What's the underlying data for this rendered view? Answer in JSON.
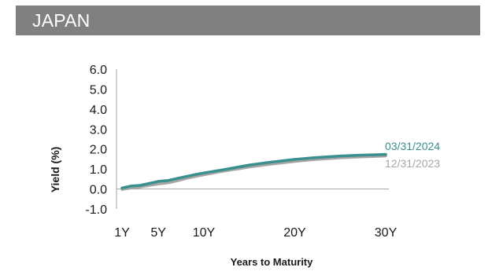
{
  "header": {
    "title": "JAPAN"
  },
  "colors": {
    "header_bg": "#808080",
    "series_1": "#3a8f8f",
    "series_2": "#a6a6a6",
    "axis": "#a6a6a6"
  },
  "chart_data": {
    "type": "line",
    "title": "",
    "xlabel": "Years to Maturity",
    "ylabel": "Yield (%)",
    "ylim": [
      -1.0,
      6.0
    ],
    "yticks": [
      "6.0",
      "5.0",
      "4.0",
      "3.0",
      "2.0",
      "1.0",
      "0.0",
      "-1.0"
    ],
    "xticks": [
      "1Y",
      "5Y",
      "10Y",
      "20Y",
      "30Y"
    ],
    "xtick_values": [
      1,
      5,
      10,
      20,
      30
    ],
    "xlim": [
      1,
      30
    ],
    "grid": false,
    "legend": "inline-right",
    "series": [
      {
        "name": "03/31/2024",
        "color": "#3a8f8f",
        "x": [
          1,
          2,
          3,
          4,
          5,
          6,
          7,
          8,
          9,
          10,
          12,
          15,
          17,
          20,
          22,
          25,
          27,
          30
        ],
        "values": [
          0.05,
          0.15,
          0.18,
          0.28,
          0.38,
          0.42,
          0.52,
          0.62,
          0.72,
          0.8,
          0.95,
          1.2,
          1.32,
          1.48,
          1.56,
          1.65,
          1.69,
          1.73
        ]
      },
      {
        "name": "12/31/2023",
        "color": "#a6a6a6",
        "x": [
          1,
          2,
          3,
          4,
          5,
          6,
          7,
          8,
          9,
          10,
          12,
          15,
          17,
          20,
          22,
          25,
          27,
          30
        ],
        "values": [
          -0.02,
          0.05,
          0.1,
          0.18,
          0.25,
          0.3,
          0.4,
          0.52,
          0.62,
          0.71,
          0.88,
          1.1,
          1.22,
          1.38,
          1.47,
          1.56,
          1.6,
          1.65
        ]
      }
    ]
  }
}
